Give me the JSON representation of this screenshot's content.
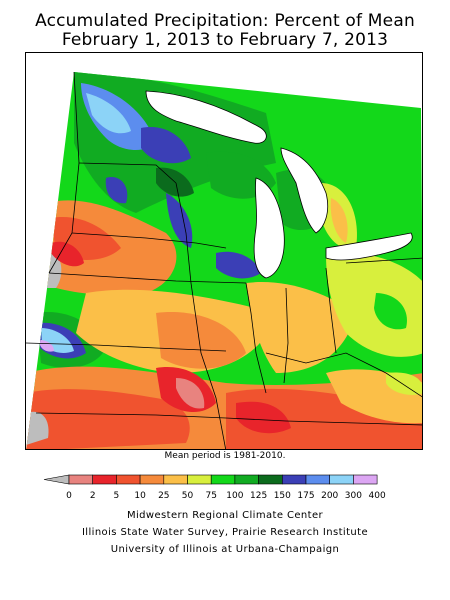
{
  "title": {
    "line1": "Accumulated Precipitation: Percent of Mean",
    "line2": "February 1, 2013 to February 7, 2013"
  },
  "note": "Mean period is 1981-2010.",
  "legend": {
    "bins": [
      {
        "label": "0",
        "color": "#bdbdbd"
      },
      {
        "label": "2",
        "color": "#e8837f"
      },
      {
        "label": "5",
        "color": "#e8242b"
      },
      {
        "label": "10",
        "color": "#f0532f"
      },
      {
        "label": "25",
        "color": "#f58a3b"
      },
      {
        "label": "50",
        "color": "#fbbf48"
      },
      {
        "label": "75",
        "color": "#d8ef3d"
      },
      {
        "label": "100",
        "color": "#13d81a"
      },
      {
        "label": "125",
        "color": "#11ab22"
      },
      {
        "label": "150",
        "color": "#0b6b1d"
      },
      {
        "label": "175",
        "color": "#3b3fb6"
      },
      {
        "label": "200",
        "color": "#5c8dee"
      },
      {
        "label": "300",
        "color": "#8cd3f7"
      },
      {
        "label": "400",
        "color": "#dca6f3"
      }
    ]
  },
  "credits": {
    "line1": "Midwestern Regional Climate Center",
    "line2": "Illinois State Water Survey, Prairie Research Institute",
    "line3": "University of Illinois at Urbana-Champaign"
  },
  "colors": {
    "lake": "#ffffff",
    "outline": "#000000"
  }
}
